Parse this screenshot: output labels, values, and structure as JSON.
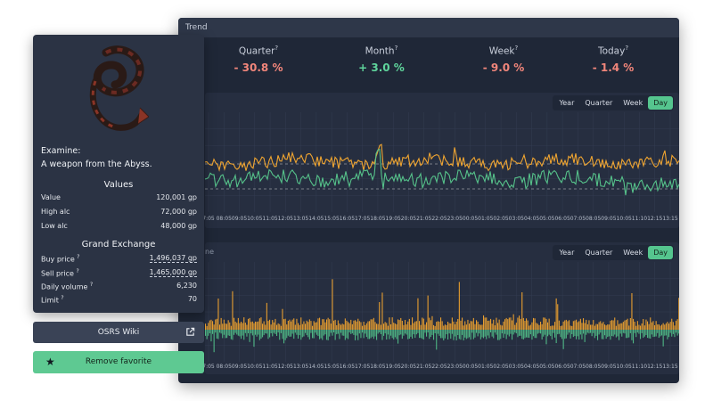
{
  "trend": {
    "title": "Trend",
    "cells": [
      {
        "label": "Quarter",
        "value": "- 30.8 %",
        "color": "#f2867b"
      },
      {
        "label": "Month",
        "value": "+ 3.0 %",
        "color": "#5fd59c"
      },
      {
        "label": "Week",
        "value": "- 9.0 %",
        "color": "#f2867b"
      },
      {
        "label": "Today",
        "value": "- 1.4 %",
        "color": "#f2867b"
      }
    ],
    "help_mark": "?"
  },
  "price_chart": {
    "ranges": [
      "Year",
      "Quarter",
      "Week",
      "Day"
    ],
    "active_range": "Day"
  },
  "volume_chart": {
    "title_visible": "ne",
    "ranges": [
      "Year",
      "Quarter",
      "Week",
      "Day"
    ],
    "active_range": "Day"
  },
  "x_ticks": [
    "7:05",
    "08:05",
    "09:05",
    "10:05",
    "11:05",
    "12:05",
    "13:05",
    "14:05",
    "15:05",
    "16:05",
    "17:05",
    "18:05",
    "19:05",
    "20:05",
    "21:05",
    "22:05",
    "23:05",
    "00:05",
    "01:05",
    "02:05",
    "03:05",
    "04:05",
    "05:05",
    "06:05",
    "07:05",
    "08:05",
    "09:05",
    "10:05",
    "11:10",
    "12:15",
    "13:15"
  ],
  "item": {
    "icon": "abyssal-whip-icon",
    "examine_label": "Examine:",
    "examine_text": "A weapon from the Abyss.",
    "values_heading": "Values",
    "value_label": "Value",
    "value": "120,001 gp",
    "high_alc_label": "High alc",
    "high_alc": "72,000 gp",
    "low_alc_label": "Low alc",
    "low_alc": "48,000 gp",
    "ge_heading": "Grand Exchange",
    "buy_label": "Buy price",
    "buy_price": "1,496,037 gp",
    "sell_label": "Sell price",
    "sell_price": "1,465,000 gp",
    "volume_label": "Daily volume",
    "daily_volume": "6,230",
    "limit_label": "Limit",
    "limit": "70"
  },
  "buttons": {
    "wiki_label": "OSRS Wiki",
    "favorite_label": "Remove favorite"
  },
  "colors": {
    "orange": "#f0a530",
    "green": "#56c28a",
    "accent": "#5ec992"
  }
}
